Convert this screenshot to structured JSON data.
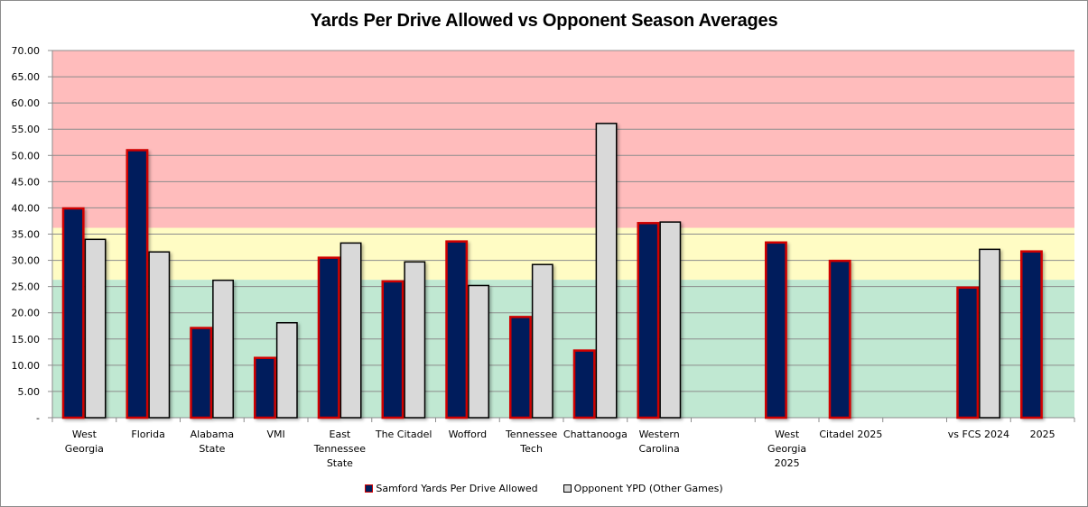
{
  "chart_data": {
    "type": "bar",
    "title": "Yards Per Drive Allowed vs Opponent Season Averages",
    "xlabel": "",
    "ylabel": "",
    "ylim": [
      0,
      70
    ],
    "yticks": [
      0,
      5,
      10,
      15,
      20,
      25,
      30,
      35,
      40,
      45,
      50,
      55,
      60,
      65,
      70
    ],
    "ytick_labels": [
      "-",
      "5.00",
      "10.00",
      "15.00",
      "20.00",
      "25.00",
      "30.00",
      "35.00",
      "40.00",
      "45.00",
      "50.00",
      "55.00",
      "60.00",
      "65.00",
      "70.00"
    ],
    "grid": true,
    "legend_position": "bottom",
    "background_bands": [
      {
        "name": "good",
        "from": 0,
        "to": 26.3,
        "color": "#c0e8d2"
      },
      {
        "name": "average",
        "from": 26.3,
        "to": 36.2,
        "color": "#fffcc4"
      },
      {
        "name": "bad",
        "from": 36.2,
        "to": 70,
        "color": "#ffbcbc"
      }
    ],
    "categories": [
      [
        "West",
        "Georgia"
      ],
      [
        "Florida"
      ],
      [
        "Alabama",
        "State"
      ],
      [
        "VMI"
      ],
      [
        "East",
        "Tennessee",
        "State"
      ],
      [
        "The Citadel"
      ],
      [
        "Wofford"
      ],
      [
        "Tennessee",
        "Tech"
      ],
      [
        "Chattanooga"
      ],
      [
        "Western",
        "Carolina"
      ],
      [],
      [
        "West",
        "Georgia",
        "2025"
      ],
      [
        "Citadel 2025"
      ],
      [],
      [
        "vs FCS 2024"
      ],
      [
        "2025"
      ]
    ],
    "series": [
      {
        "name": "Samford Yards Per Drive Allowed",
        "color": "#001f5c",
        "border": "#d00000",
        "values": [
          39.9,
          51.0,
          17.1,
          11.4,
          30.5,
          26.0,
          33.6,
          19.2,
          12.8,
          37.1,
          null,
          33.4,
          29.9,
          null,
          24.8,
          31.7
        ]
      },
      {
        "name": "Opponent YPD (Other Games)",
        "color": "#d9d9d9",
        "border": "#000000",
        "values": [
          34.0,
          31.6,
          26.2,
          18.1,
          33.3,
          29.7,
          25.2,
          29.2,
          56.1,
          37.3,
          null,
          null,
          null,
          null,
          32.1,
          null
        ]
      }
    ]
  }
}
